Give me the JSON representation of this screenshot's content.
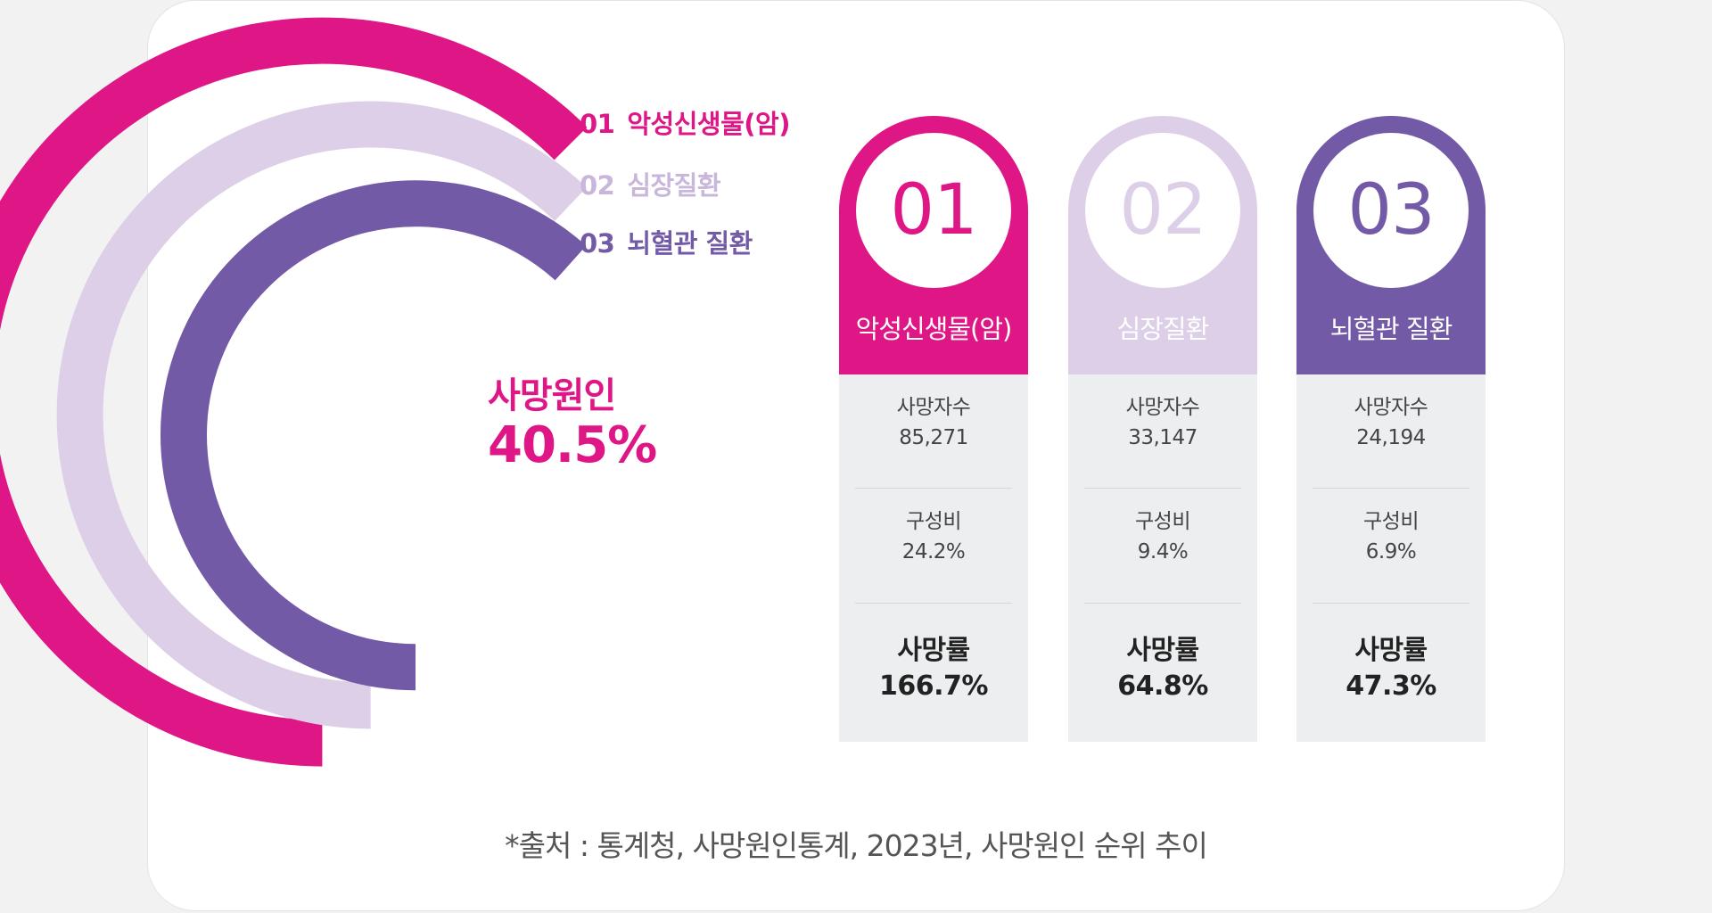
{
  "colors": {
    "cancer": "#df1685",
    "heart": "#dccfe7",
    "cerebro": "#725aa7",
    "heart_text": "#c8b7da"
  },
  "legend": [
    {
      "num": "01",
      "label": "악성신생물(암)",
      "color": "#df1685"
    },
    {
      "num": "02",
      "label": "심장질환",
      "color": "#c8b7da"
    },
    {
      "num": "03",
      "label": "뇌혈관 질환",
      "color": "#725aa7"
    }
  ],
  "center": {
    "line1": "사망원인",
    "line2": "40.5%"
  },
  "columns": [
    {
      "num": "01",
      "title": "악성신생물(암)",
      "color": "#df1685",
      "num_color": "#df1685",
      "deaths_label": "사망자수",
      "deaths_value": "85,271",
      "ratio_label": "구성비",
      "ratio_value": "24.2%",
      "rate_label": "사망률",
      "rate_value": "166.7%"
    },
    {
      "num": "02",
      "title": "심장질환",
      "color": "#dccfe7",
      "num_color": "#dccfe7",
      "deaths_label": "사망자수",
      "deaths_value": "33,147",
      "ratio_label": "구성비",
      "ratio_value": "9.4%",
      "rate_label": "사망률",
      "rate_value": "64.8%"
    },
    {
      "num": "03",
      "title": "뇌혈관 질환",
      "color": "#725aa7",
      "num_color": "#725aa7",
      "deaths_label": "사망자수",
      "deaths_value": "24,194",
      "ratio_label": "구성비",
      "ratio_value": "6.9%",
      "rate_label": "사망률",
      "rate_value": "47.3%"
    }
  ],
  "source": "*출처 : 통계청, 사망원인통계, 2023년, 사망원인 순위 추이",
  "chart_data": {
    "type": "radial-bar",
    "categories": [
      "악성신생물(암)",
      "심장질환",
      "뇌혈관 질환"
    ],
    "series": [
      {
        "name": "사망자수",
        "values": [
          85271,
          33147,
          24194
        ]
      },
      {
        "name": "구성비",
        "values": [
          24.2,
          9.4,
          6.9
        ],
        "unit": "%"
      },
      {
        "name": "사망률",
        "values": [
          166.7,
          64.8,
          47.3
        ],
        "unit": "%"
      }
    ],
    "total_share": 40.5
  }
}
